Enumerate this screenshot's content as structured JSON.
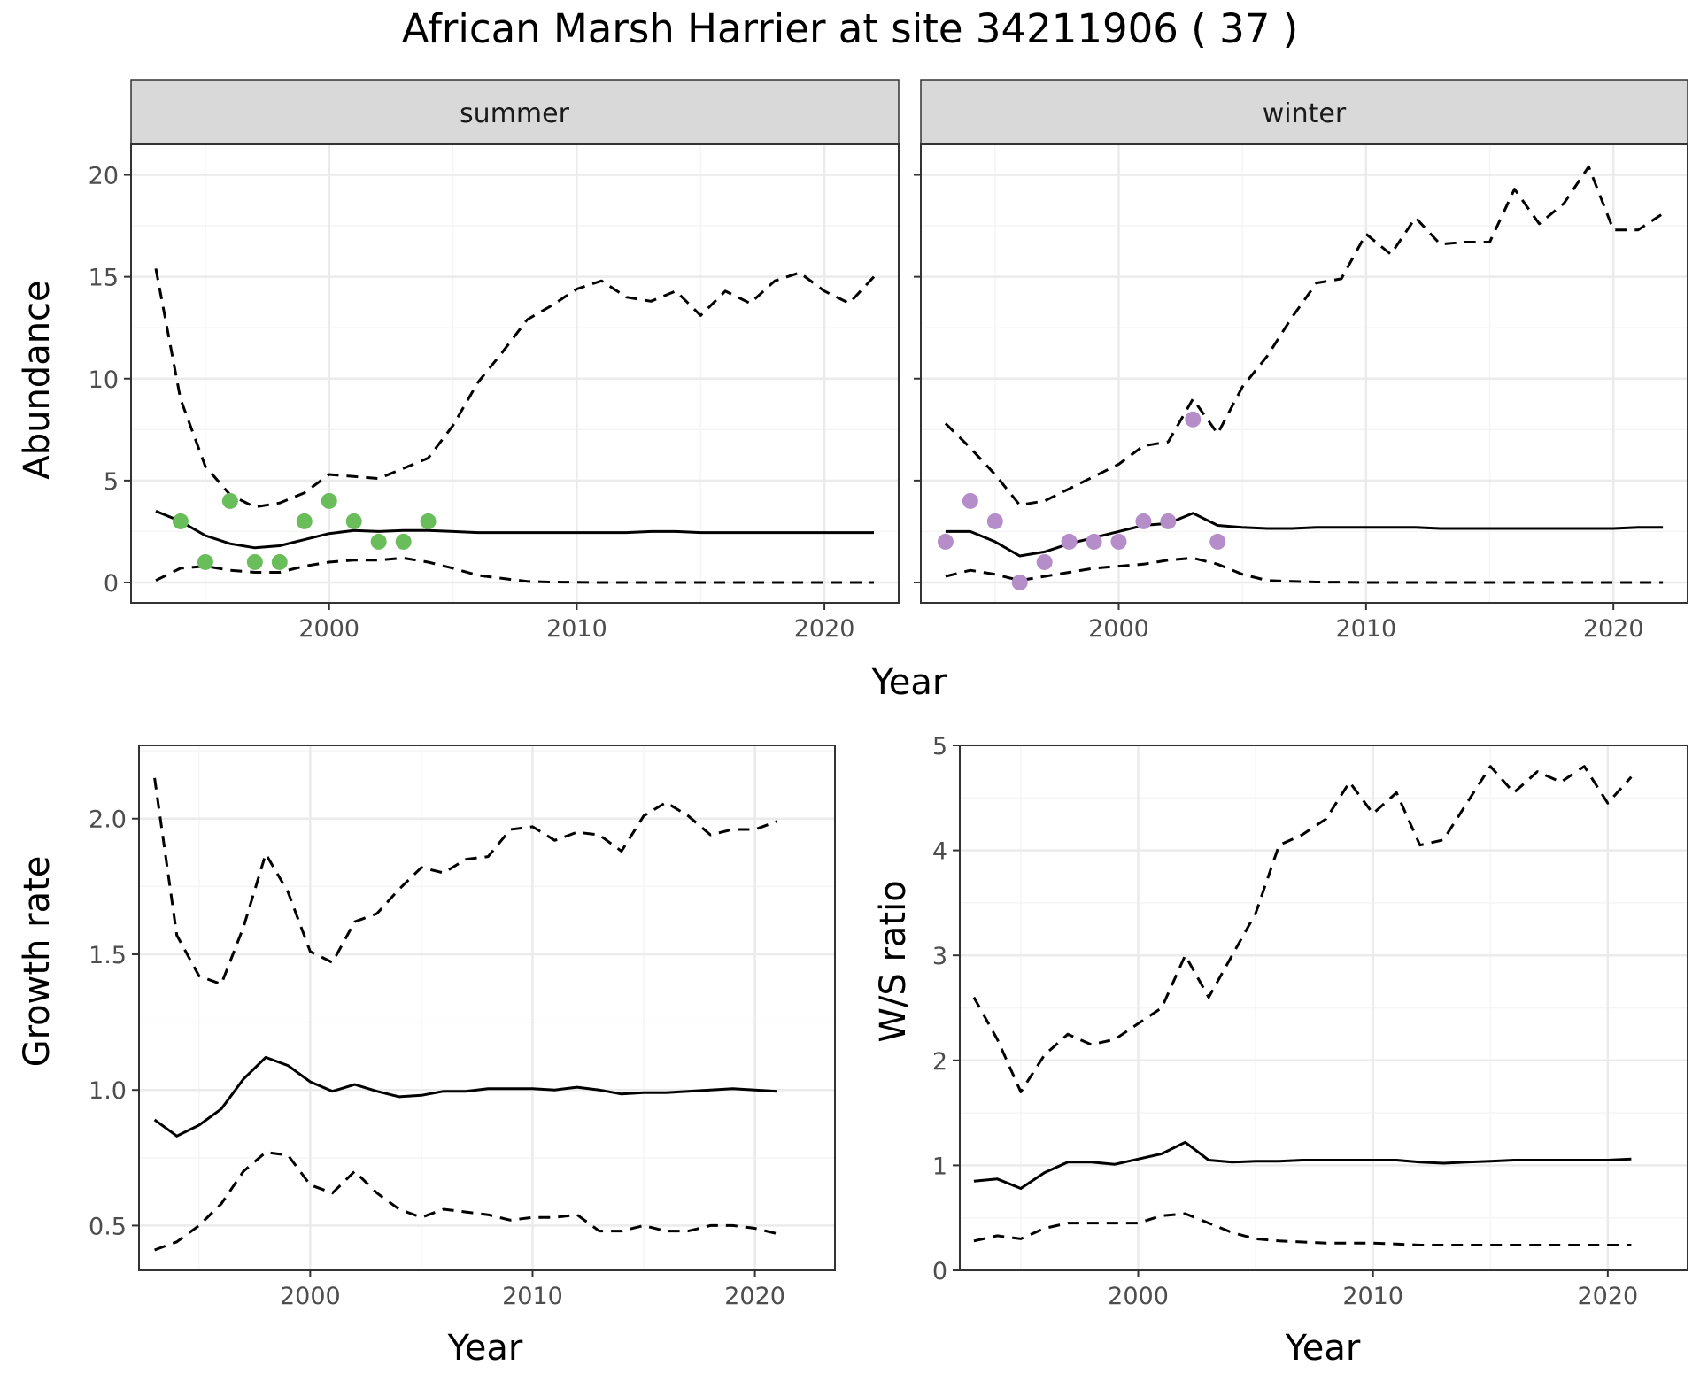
{
  "title": "African Marsh Harrier at site 34211906 ( 37 )",
  "colors": {
    "summer_points": "#6abd5b",
    "winter_points": "#b48dc9",
    "line": "#000000",
    "strip_bg": "#d9d9d9",
    "grid_major": "#ebebeb",
    "grid_minor": "#f5f5f5"
  },
  "abundance": {
    "ylabel": "Abundance",
    "xlabel": "Year",
    "panels": [
      {
        "strip": "summer"
      },
      {
        "strip": "winter"
      }
    ]
  },
  "growth": {
    "ylabel": "Growth rate",
    "xlabel": "Year"
  },
  "ws": {
    "ylabel": "W/S ratio",
    "xlabel": "Year"
  },
  "chart_data": [
    {
      "type": "line",
      "panel": "summer",
      "xlabel": "Year",
      "ylabel": "Abundance",
      "xlim": [
        1992,
        2023
      ],
      "ylim": [
        -1,
        21.5
      ],
      "xticks": [
        2000,
        2010,
        2020
      ],
      "yticks": [
        0,
        5,
        10,
        15,
        20
      ],
      "grid": true,
      "series": [
        {
          "style": "solid",
          "x": [
            1993,
            1994,
            1995,
            1996,
            1997,
            1998,
            1999,
            2000,
            2001,
            2002,
            2003,
            2004,
            2005,
            2006,
            2007,
            2008,
            2009,
            2010,
            2011,
            2012,
            2013,
            2014,
            2015,
            2016,
            2017,
            2018,
            2019,
            2020,
            2021,
            2022
          ],
          "values": [
            3.5,
            3.0,
            2.3,
            1.9,
            1.7,
            1.8,
            2.1,
            2.4,
            2.55,
            2.5,
            2.55,
            2.55,
            2.5,
            2.45,
            2.45,
            2.45,
            2.45,
            2.45,
            2.45,
            2.45,
            2.5,
            2.5,
            2.45,
            2.45,
            2.45,
            2.45,
            2.45,
            2.45,
            2.45,
            2.45
          ]
        },
        {
          "style": "dashed",
          "x": [
            1993,
            1994,
            1995,
            1996,
            1997,
            1998,
            1999,
            2000,
            2001,
            2002,
            2003,
            2004,
            2005,
            2006,
            2007,
            2008,
            2009,
            2010,
            2011,
            2012,
            2013,
            2014,
            2015,
            2016,
            2017,
            2018,
            2019,
            2020,
            2021,
            2022
          ],
          "values": [
            15.4,
            9.0,
            5.7,
            4.3,
            3.7,
            3.9,
            4.4,
            5.3,
            5.2,
            5.1,
            5.6,
            6.1,
            7.7,
            9.8,
            11.3,
            12.9,
            13.6,
            14.4,
            14.8,
            14.0,
            13.8,
            14.3,
            13.1,
            14.3,
            13.7,
            14.8,
            15.2,
            14.3,
            13.7,
            15.0
          ]
        },
        {
          "style": "dashed",
          "x": [
            1993,
            1994,
            1995,
            1996,
            1997,
            1998,
            1999,
            2000,
            2001,
            2002,
            2003,
            2004,
            2005,
            2006,
            2007,
            2008,
            2009,
            2010,
            2011,
            2012,
            2013,
            2014,
            2015,
            2016,
            2017,
            2018,
            2019,
            2020,
            2021,
            2022
          ],
          "values": [
            0.1,
            0.7,
            0.8,
            0.6,
            0.5,
            0.5,
            0.8,
            1.0,
            1.1,
            1.1,
            1.2,
            1.0,
            0.7,
            0.35,
            0.2,
            0.05,
            0.02,
            0.01,
            0,
            0,
            0,
            0,
            0,
            0,
            0,
            0,
            0,
            0,
            0,
            0
          ]
        },
        {
          "style": "points",
          "name": "summer",
          "x": [
            1994,
            1995,
            1996,
            1997,
            1998,
            1999,
            2000,
            2001,
            2002,
            2003,
            2004
          ],
          "values": [
            3,
            1,
            4,
            1,
            1,
            3,
            4,
            3,
            2,
            2,
            3
          ]
        }
      ]
    },
    {
      "type": "line",
      "panel": "winter",
      "xlabel": "Year",
      "ylabel": "Abundance",
      "xlim": [
        1992,
        2023
      ],
      "ylim": [
        -1,
        21.5
      ],
      "xticks": [
        2000,
        2010,
        2020
      ],
      "yticks": [
        0,
        5,
        10,
        15,
        20
      ],
      "grid": true,
      "series": [
        {
          "style": "solid",
          "x": [
            1993,
            1994,
            1995,
            1996,
            1997,
            1998,
            1999,
            2000,
            2001,
            2002,
            2003,
            2004,
            2005,
            2006,
            2007,
            2008,
            2009,
            2010,
            2011,
            2012,
            2013,
            2014,
            2015,
            2016,
            2017,
            2018,
            2019,
            2020,
            2021,
            2022
          ],
          "values": [
            2.5,
            2.5,
            2.0,
            1.3,
            1.5,
            1.9,
            2.2,
            2.5,
            2.8,
            2.9,
            3.4,
            2.8,
            2.7,
            2.65,
            2.65,
            2.7,
            2.7,
            2.7,
            2.7,
            2.7,
            2.65,
            2.65,
            2.65,
            2.65,
            2.65,
            2.65,
            2.65,
            2.65,
            2.7,
            2.7
          ]
        },
        {
          "style": "dashed",
          "x": [
            1993,
            1994,
            1995,
            1996,
            1997,
            1998,
            1999,
            2000,
            2001,
            2002,
            2003,
            2004,
            2005,
            2006,
            2007,
            2008,
            2009,
            2010,
            2011,
            2012,
            2013,
            2014,
            2015,
            2016,
            2017,
            2018,
            2019,
            2020,
            2021,
            2022
          ],
          "values": [
            7.8,
            6.6,
            5.3,
            3.8,
            4.0,
            4.6,
            5.2,
            5.8,
            6.7,
            6.9,
            9.0,
            7.3,
            9.6,
            11.1,
            13.0,
            14.7,
            14.9,
            17.1,
            16.1,
            17.9,
            16.6,
            16.7,
            16.7,
            19.3,
            17.6,
            18.6,
            20.4,
            17.3,
            17.3,
            18.1
          ]
        },
        {
          "style": "dashed",
          "x": [
            1993,
            1994,
            1995,
            1996,
            1997,
            1998,
            1999,
            2000,
            2001,
            2002,
            2003,
            2004,
            2005,
            2006,
            2007,
            2008,
            2009,
            2010,
            2011,
            2012,
            2013,
            2014,
            2015,
            2016,
            2017,
            2018,
            2019,
            2020,
            2021,
            2022
          ],
          "values": [
            0.3,
            0.6,
            0.4,
            0.1,
            0.3,
            0.5,
            0.7,
            0.8,
            0.9,
            1.1,
            1.2,
            0.9,
            0.4,
            0.1,
            0.05,
            0.02,
            0.01,
            0,
            0,
            0,
            0,
            0,
            0,
            0,
            0,
            0,
            0,
            0,
            0,
            0
          ]
        },
        {
          "style": "points",
          "name": "winter",
          "x": [
            1993,
            1994,
            1995,
            1996,
            1997,
            1998,
            1999,
            2000,
            2001,
            2002,
            2003,
            2004
          ],
          "values": [
            2,
            4,
            3,
            0,
            1,
            2,
            2,
            2,
            3,
            3,
            8,
            2
          ]
        }
      ]
    },
    {
      "type": "line",
      "panel": "growth",
      "xlabel": "Year",
      "ylabel": "Growth rate",
      "xlim": [
        1992.3,
        2023.6
      ],
      "ylim": [
        0.335,
        2.27
      ],
      "xticks": [
        2000,
        2010,
        2020
      ],
      "yticks": [
        0.5,
        1.0,
        1.5,
        2.0
      ],
      "grid": true,
      "series": [
        {
          "style": "solid",
          "x": [
            1993,
            1994,
            1995,
            1996,
            1997,
            1998,
            1999,
            2000,
            2001,
            2002,
            2003,
            2004,
            2005,
            2006,
            2007,
            2008,
            2009,
            2010,
            2011,
            2012,
            2013,
            2014,
            2015,
            2016,
            2017,
            2018,
            2019,
            2020,
            2021
          ],
          "values": [
            0.89,
            0.83,
            0.87,
            0.93,
            1.04,
            1.12,
            1.09,
            1.03,
            0.995,
            1.02,
            0.995,
            0.975,
            0.98,
            0.995,
            0.995,
            1.005,
            1.005,
            1.005,
            1.0,
            1.01,
            1.0,
            0.985,
            0.99,
            0.99,
            0.995,
            1.0,
            1.005,
            1.0,
            0.995
          ]
        },
        {
          "style": "dashed",
          "x": [
            1993,
            1994,
            1995,
            1996,
            1997,
            1998,
            1999,
            2000,
            2001,
            2002,
            2003,
            2004,
            2005,
            2006,
            2007,
            2008,
            2009,
            2010,
            2011,
            2012,
            2013,
            2014,
            2015,
            2016,
            2017,
            2018,
            2019,
            2020,
            2021
          ],
          "values": [
            2.15,
            1.57,
            1.42,
            1.39,
            1.6,
            1.87,
            1.73,
            1.51,
            1.47,
            1.62,
            1.65,
            1.74,
            1.82,
            1.8,
            1.85,
            1.86,
            1.96,
            1.97,
            1.92,
            1.95,
            1.94,
            1.88,
            2.01,
            2.06,
            2.01,
            1.94,
            1.96,
            1.96,
            1.99
          ]
        },
        {
          "style": "dashed",
          "x": [
            1993,
            1994,
            1995,
            1996,
            1997,
            1998,
            1999,
            2000,
            2001,
            2002,
            2003,
            2004,
            2005,
            2006,
            2007,
            2008,
            2009,
            2010,
            2011,
            2012,
            2013,
            2014,
            2015,
            2016,
            2017,
            2018,
            2019,
            2020,
            2021
          ],
          "values": [
            0.41,
            0.44,
            0.5,
            0.58,
            0.7,
            0.77,
            0.76,
            0.65,
            0.62,
            0.7,
            0.62,
            0.56,
            0.53,
            0.56,
            0.55,
            0.54,
            0.52,
            0.53,
            0.53,
            0.54,
            0.48,
            0.48,
            0.5,
            0.48,
            0.48,
            0.5,
            0.5,
            0.49,
            0.47
          ]
        }
      ]
    },
    {
      "type": "line",
      "panel": "ws",
      "xlabel": "Year",
      "ylabel": "W/S ratio",
      "xlim": [
        1992.4,
        2023.4
      ],
      "ylim": [
        0,
        5
      ],
      "xticks": [
        2000,
        2010,
        2020
      ],
      "yticks": [
        0,
        1,
        2,
        3,
        4,
        5
      ],
      "grid": true,
      "series": [
        {
          "style": "solid",
          "x": [
            1993,
            1994,
            1995,
            1996,
            1997,
            1998,
            1999,
            2000,
            2001,
            2002,
            2003,
            2004,
            2005,
            2006,
            2007,
            2008,
            2009,
            2010,
            2011,
            2012,
            2013,
            2014,
            2015,
            2016,
            2017,
            2018,
            2019,
            2020,
            2021
          ],
          "values": [
            0.85,
            0.87,
            0.78,
            0.93,
            1.03,
            1.03,
            1.01,
            1.06,
            1.11,
            1.22,
            1.05,
            1.03,
            1.04,
            1.04,
            1.05,
            1.05,
            1.05,
            1.05,
            1.05,
            1.03,
            1.02,
            1.03,
            1.04,
            1.05,
            1.05,
            1.05,
            1.05,
            1.05,
            1.06
          ]
        },
        {
          "style": "dashed",
          "x": [
            1993,
            1994,
            1995,
            1996,
            1997,
            1998,
            1999,
            2000,
            2001,
            2002,
            2003,
            2004,
            2005,
            2006,
            2007,
            2008,
            2009,
            2010,
            2011,
            2012,
            2013,
            2014,
            2015,
            2016,
            2017,
            2018,
            2019,
            2020,
            2021
          ],
          "values": [
            2.6,
            2.2,
            1.7,
            2.05,
            2.25,
            2.15,
            2.2,
            2.35,
            2.5,
            3.0,
            2.6,
            3.0,
            3.4,
            4.05,
            4.15,
            4.3,
            4.65,
            4.35,
            4.55,
            4.05,
            4.1,
            4.45,
            4.8,
            4.55,
            4.75,
            4.65,
            4.8,
            4.45,
            4.7
          ]
        },
        {
          "style": "dashed",
          "x": [
            1993,
            1994,
            1995,
            1996,
            1997,
            1998,
            1999,
            2000,
            2001,
            2002,
            2003,
            2004,
            2005,
            2006,
            2007,
            2008,
            2009,
            2010,
            2011,
            2012,
            2013,
            2014,
            2015,
            2016,
            2017,
            2018,
            2019,
            2020,
            2021
          ],
          "values": [
            0.28,
            0.33,
            0.3,
            0.4,
            0.45,
            0.45,
            0.45,
            0.45,
            0.52,
            0.54,
            0.45,
            0.36,
            0.3,
            0.28,
            0.27,
            0.26,
            0.26,
            0.26,
            0.25,
            0.24,
            0.24,
            0.24,
            0.24,
            0.24,
            0.24,
            0.24,
            0.24,
            0.24,
            0.24
          ]
        }
      ]
    }
  ]
}
